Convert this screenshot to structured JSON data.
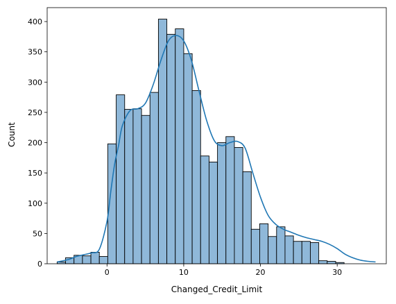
{
  "chart_data": {
    "type": "bar",
    "title": "",
    "xlabel": "Changed_Credit_Limit",
    "ylabel": "Count",
    "xlim": [
      -7.8,
      36.4
    ],
    "ylim": [
      0,
      423
    ],
    "x_ticks": [
      0,
      10,
      20,
      30
    ],
    "y_ticks": [
      0,
      50,
      100,
      150,
      200,
      250,
      300,
      350,
      400
    ],
    "bin_start": -6.5,
    "bin_width": 1.1,
    "counts": [
      3,
      10,
      14,
      13,
      19,
      12,
      198,
      279,
      255,
      256,
      245,
      283,
      404,
      379,
      388,
      347,
      286,
      178,
      168,
      200,
      210,
      192,
      152,
      57,
      66,
      45,
      61,
      46,
      37,
      37,
      35,
      5,
      4,
      2
    ],
    "kde": {
      "x": [
        -6.5,
        -5,
        -4,
        -3,
        -2,
        -1,
        0,
        0.5,
        1,
        1.5,
        2,
        3,
        4,
        5,
        6,
        7,
        8,
        9,
        10,
        11,
        12,
        13,
        14,
        15,
        16,
        17,
        18,
        19,
        20,
        21,
        22,
        23,
        24,
        25,
        26,
        27,
        28,
        29,
        30,
        31,
        32,
        33,
        34,
        35
      ],
      "y": [
        3,
        7,
        12,
        15,
        18,
        24,
        70,
        120,
        165,
        195,
        228,
        253,
        256,
        265,
        295,
        335,
        368,
        377,
        368,
        336,
        285,
        236,
        203,
        195,
        200,
        202,
        191,
        150,
        110,
        80,
        65,
        57,
        52,
        47,
        43,
        40,
        37,
        32,
        25,
        16,
        10,
        6,
        4,
        3
      ]
    },
    "colors": {
      "bar_fill": "#8fb8d9",
      "bar_edge": "#000000",
      "kde_line": "#1f77b4"
    },
    "grid": false,
    "legend": "none"
  }
}
